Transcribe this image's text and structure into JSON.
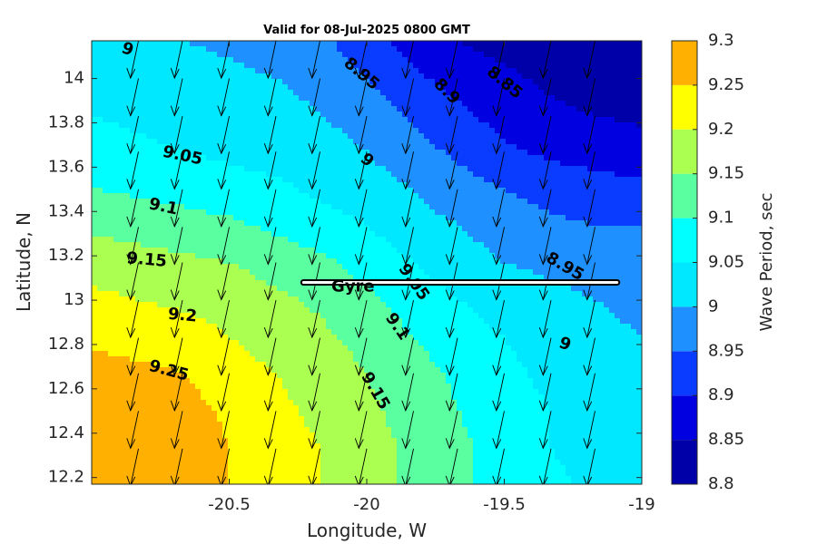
{
  "chart_data": {
    "type": "heatmap",
    "title": "Valid for 08-Jul-2025 0800 GMT",
    "xlabel": "Longitude, W",
    "ylabel": "Latitude, N",
    "xlim": [
      -21.0,
      -19.0
    ],
    "ylim": [
      12.17,
      14.17
    ],
    "x_ticks": [
      -20.5,
      -20,
      -19.5,
      -19
    ],
    "x_tick_labels": [
      "-20.5",
      "-20",
      "-19.5",
      "-19"
    ],
    "y_ticks": [
      12.2,
      12.4,
      12.6,
      12.8,
      13,
      13.2,
      13.4,
      13.6,
      13.8,
      14
    ],
    "y_tick_labels": [
      "12.2",
      "12.4",
      "12.6",
      "12.8",
      "13",
      "13.2",
      "13.4",
      "13.6",
      "13.8",
      "14"
    ],
    "x": [
      -21.0,
      -20.83,
      -20.67,
      -20.5,
      -20.33,
      -20.17,
      -20.0,
      -19.83,
      -19.67,
      -19.5,
      -19.33,
      -19.17,
      -19.0
    ],
    "y": [
      14.17,
      14.0,
      13.83,
      13.67,
      13.5,
      13.33,
      13.17,
      13.0,
      12.83,
      12.67,
      12.5,
      12.33,
      12.17
    ],
    "z": [
      [
        9.02,
        9.01,
        9.0,
        8.99,
        8.98,
        8.96,
        8.92,
        8.88,
        8.85,
        8.83,
        8.81,
        8.8,
        8.8
      ],
      [
        9.03,
        9.02,
        9.02,
        9.01,
        9.0,
        8.98,
        8.95,
        8.91,
        8.88,
        8.86,
        8.84,
        8.82,
        8.82
      ],
      [
        9.05,
        9.04,
        9.03,
        9.03,
        9.02,
        9.0,
        8.98,
        8.94,
        8.91,
        8.88,
        8.86,
        8.85,
        8.84
      ],
      [
        9.07,
        9.06,
        9.05,
        9.04,
        9.03,
        9.02,
        9.0,
        8.97,
        8.94,
        8.91,
        8.89,
        8.88,
        8.87
      ],
      [
        9.1,
        9.09,
        9.08,
        9.07,
        9.06,
        9.04,
        9.02,
        9.0,
        8.97,
        8.95,
        8.93,
        8.92,
        8.91
      ],
      [
        9.14,
        9.13,
        9.12,
        9.11,
        9.09,
        9.07,
        9.05,
        9.02,
        9.0,
        8.98,
        8.96,
        8.95,
        8.95
      ],
      [
        9.18,
        9.17,
        9.16,
        9.15,
        9.13,
        9.11,
        9.08,
        9.05,
        9.02,
        9.0,
        8.99,
        8.98,
        8.97
      ],
      [
        9.21,
        9.2,
        9.19,
        9.18,
        9.16,
        9.14,
        9.11,
        9.08,
        9.05,
        9.03,
        9.01,
        9.0,
        8.99
      ],
      [
        9.24,
        9.23,
        9.22,
        9.2,
        9.18,
        9.16,
        9.13,
        9.1,
        9.07,
        9.05,
        9.03,
        9.01,
        9.0
      ],
      [
        9.27,
        9.26,
        9.25,
        9.22,
        9.2,
        9.18,
        9.15,
        9.12,
        9.09,
        9.06,
        9.04,
        9.02,
        9.01
      ],
      [
        9.29,
        9.28,
        9.27,
        9.24,
        9.21,
        9.19,
        9.16,
        9.13,
        9.1,
        9.07,
        9.05,
        9.03,
        9.02
      ],
      [
        9.3,
        9.29,
        9.28,
        9.25,
        9.22,
        9.2,
        9.17,
        9.14,
        9.11,
        9.08,
        9.05,
        9.03,
        9.02
      ],
      [
        9.3,
        9.29,
        9.28,
        9.25,
        9.22,
        9.2,
        9.17,
        9.14,
        9.11,
        9.08,
        9.06,
        9.04,
        9.02
      ]
    ],
    "levels": [
      8.8,
      8.85,
      8.9,
      8.95,
      9.0,
      9.05,
      9.1,
      9.15,
      9.2,
      9.25,
      9.3
    ],
    "level_colors": [
      "#0000a8",
      "#0000e0",
      "#0a3cff",
      "#1e90ff",
      "#00e8ff",
      "#00ffff",
      "#5affa0",
      "#aaff50",
      "#ffff00",
      "#ffb000",
      "#ff5a00"
    ],
    "contour_labels": [
      {
        "text": "9",
        "lon": -20.87,
        "lat": 14.13,
        "angle": 20
      },
      {
        "text": "8.95",
        "lon": -20.02,
        "lat": 14.02,
        "angle": 40
      },
      {
        "text": "8.9",
        "lon": -19.71,
        "lat": 13.94,
        "angle": 45
      },
      {
        "text": "8.85",
        "lon": -19.5,
        "lat": 13.98,
        "angle": 40
      },
      {
        "text": "9.05",
        "lon": -20.67,
        "lat": 13.65,
        "angle": 12
      },
      {
        "text": "9",
        "lon": -20.0,
        "lat": 13.63,
        "angle": 40
      },
      {
        "text": "9.1",
        "lon": -20.74,
        "lat": 13.42,
        "angle": 12
      },
      {
        "text": "9.15",
        "lon": -20.8,
        "lat": 13.18,
        "angle": 5
      },
      {
        "text": "8.95",
        "lon": -19.28,
        "lat": 13.15,
        "angle": 30
      },
      {
        "text": "9.05",
        "lon": -19.83,
        "lat": 13.08,
        "angle": 55
      },
      {
        "text": "9.2",
        "lon": -20.67,
        "lat": 12.93,
        "angle": 5
      },
      {
        "text": "9.1",
        "lon": -19.89,
        "lat": 12.88,
        "angle": 55
      },
      {
        "text": "9",
        "lon": -19.28,
        "lat": 12.8,
        "angle": 20
      },
      {
        "text": "9.25",
        "lon": -20.72,
        "lat": 12.68,
        "angle": 15
      },
      {
        "text": "9.15",
        "lon": -19.97,
        "lat": 12.59,
        "angle": 60
      }
    ],
    "arrow_direction": "south-southwest",
    "annotation": {
      "text": "Gyre",
      "lon": -20.05,
      "lat": 13.06
    },
    "track_line": {
      "lon_start": -20.23,
      "lon_end": -19.09,
      "lat": 13.08
    },
    "colorbar": {
      "label": "Wave Period, sec",
      "ticks": [
        8.8,
        8.85,
        8.9,
        8.95,
        9.0,
        9.05,
        9.1,
        9.15,
        9.2,
        9.25,
        9.3
      ],
      "tick_labels": [
        "8.8",
        "8.85",
        "8.9",
        "8.95",
        "9",
        "9.05",
        "9.1",
        "9.15",
        "9.2",
        "9.25",
        "9.3"
      ]
    },
    "grid": false
  }
}
